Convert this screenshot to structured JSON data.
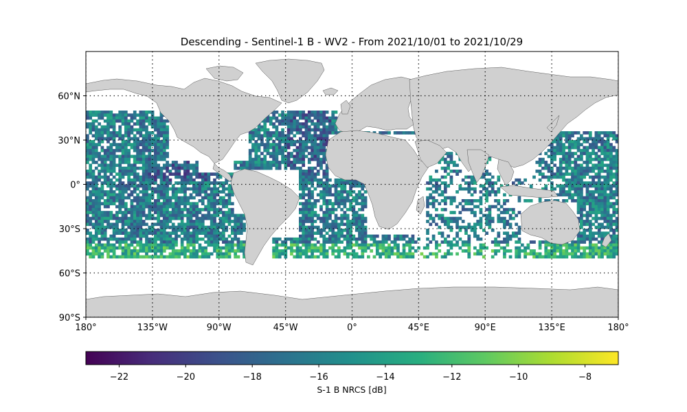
{
  "title": "Descending - Sentinel-1 B - WV2 - From 2021/10/01 to 2021/10/29",
  "map": {
    "lon_range": [
      -180,
      180
    ],
    "lat_range": [
      -90,
      90
    ],
    "x_ticks": [
      {
        "value": -180,
        "label": "180°"
      },
      {
        "value": -135,
        "label": "135°W"
      },
      {
        "value": -90,
        "label": "90°W"
      },
      {
        "value": -45,
        "label": "45°W"
      },
      {
        "value": 0,
        "label": "0°"
      },
      {
        "value": 45,
        "label": "45°E"
      },
      {
        "value": 90,
        "label": "90°E"
      },
      {
        "value": 135,
        "label": "135°E"
      },
      {
        "value": 180,
        "label": "180°"
      }
    ],
    "y_ticks": [
      {
        "value": 60,
        "label": "60°N"
      },
      {
        "value": 30,
        "label": "30°N"
      },
      {
        "value": 0,
        "label": "0°"
      },
      {
        "value": -30,
        "label": "30°S"
      },
      {
        "value": -60,
        "label": "60°S"
      },
      {
        "value": -90,
        "label": "90°S"
      }
    ],
    "land_color": "#d0d0d0",
    "grid": "dotted"
  },
  "chart_data": {
    "type": "heatmap",
    "colormap": "viridis",
    "data_lat_range": [
      -50,
      50
    ],
    "cell_size_deg": [
      2,
      2
    ],
    "value_range": [
      -23,
      -7
    ]
  },
  "colorbar": {
    "label": "S-1 B NRCS [dB]",
    "ticks": [
      {
        "value": -22,
        "label": "−22"
      },
      {
        "value": -20,
        "label": "−20"
      },
      {
        "value": -18,
        "label": "−18"
      },
      {
        "value": -16,
        "label": "−16"
      },
      {
        "value": -14,
        "label": "−14"
      },
      {
        "value": -12,
        "label": "−12"
      },
      {
        "value": -10,
        "label": "−10"
      },
      {
        "value": -8,
        "label": "−8"
      }
    ]
  }
}
